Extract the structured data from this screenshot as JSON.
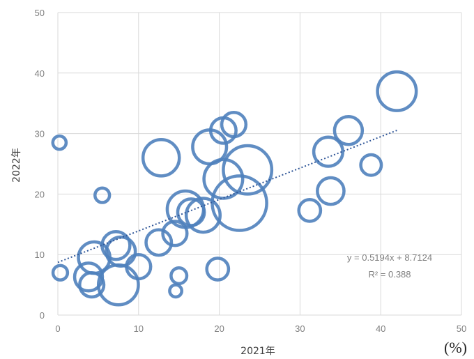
{
  "chart_data": {
    "type": "bubble",
    "xlabel": "2021年",
    "ylabel": "2022年",
    "unit_label": "(%)",
    "xlim": [
      0,
      50
    ],
    "ylim": [
      0,
      50
    ],
    "xticks": [
      0,
      10,
      20,
      30,
      40,
      50
    ],
    "yticks": [
      0,
      10,
      20,
      30,
      40,
      50
    ],
    "grid": true,
    "legend": "none",
    "bubble_color": "#4f81bd",
    "trendline": {
      "type": "linear",
      "slope": 0.5194,
      "intercept": 8.7124,
      "x_range": [
        0,
        42
      ],
      "color": "#2e5597",
      "equation_label": "y = 0.5194x + 8.7124",
      "r2_label": "R² = 0.388"
    },
    "points": [
      {
        "x": 0.2,
        "y": 28.5,
        "size": 1.1
      },
      {
        "x": 5.5,
        "y": 19.8,
        "size": 1.2
      },
      {
        "x": 0.3,
        "y": 7.0,
        "size": 1.2
      },
      {
        "x": 4.5,
        "y": 9.5,
        "size": 2.6
      },
      {
        "x": 3.8,
        "y": 6.3,
        "size": 2.3
      },
      {
        "x": 4.2,
        "y": 5.0,
        "size": 2.0
      },
      {
        "x": 7.2,
        "y": 11.5,
        "size": 2.3
      },
      {
        "x": 7.8,
        "y": 10.5,
        "size": 2.4
      },
      {
        "x": 7.5,
        "y": 5.0,
        "size": 3.3
      },
      {
        "x": 10.0,
        "y": 8.0,
        "size": 2.0
      },
      {
        "x": 12.5,
        "y": 12.0,
        "size": 2.1
      },
      {
        "x": 12.8,
        "y": 26.0,
        "size": 3.0
      },
      {
        "x": 14.5,
        "y": 13.5,
        "size": 2.0
      },
      {
        "x": 15.0,
        "y": 6.5,
        "size": 1.3
      },
      {
        "x": 14.6,
        "y": 4.0,
        "size": 1.0
      },
      {
        "x": 15.8,
        "y": 17.5,
        "size": 3.0
      },
      {
        "x": 16.5,
        "y": 17.0,
        "size": 2.2
      },
      {
        "x": 18.0,
        "y": 16.5,
        "size": 2.8
      },
      {
        "x": 18.8,
        "y": 27.8,
        "size": 2.8
      },
      {
        "x": 19.8,
        "y": 7.6,
        "size": 1.8
      },
      {
        "x": 20.5,
        "y": 30.5,
        "size": 2.1
      },
      {
        "x": 21.8,
        "y": 31.5,
        "size": 2.0
      },
      {
        "x": 20.5,
        "y": 22.5,
        "size": 3.2
      },
      {
        "x": 23.5,
        "y": 24.0,
        "size": 4.0
      },
      {
        "x": 22.5,
        "y": 18.5,
        "size": 4.5
      },
      {
        "x": 31.2,
        "y": 17.3,
        "size": 1.8
      },
      {
        "x": 33.5,
        "y": 27.0,
        "size": 2.4
      },
      {
        "x": 33.8,
        "y": 20.5,
        "size": 2.2
      },
      {
        "x": 36.0,
        "y": 30.5,
        "size": 2.3
      },
      {
        "x": 38.8,
        "y": 24.8,
        "size": 1.7
      },
      {
        "x": 42.0,
        "y": 37.0,
        "size": 3.2
      }
    ]
  }
}
